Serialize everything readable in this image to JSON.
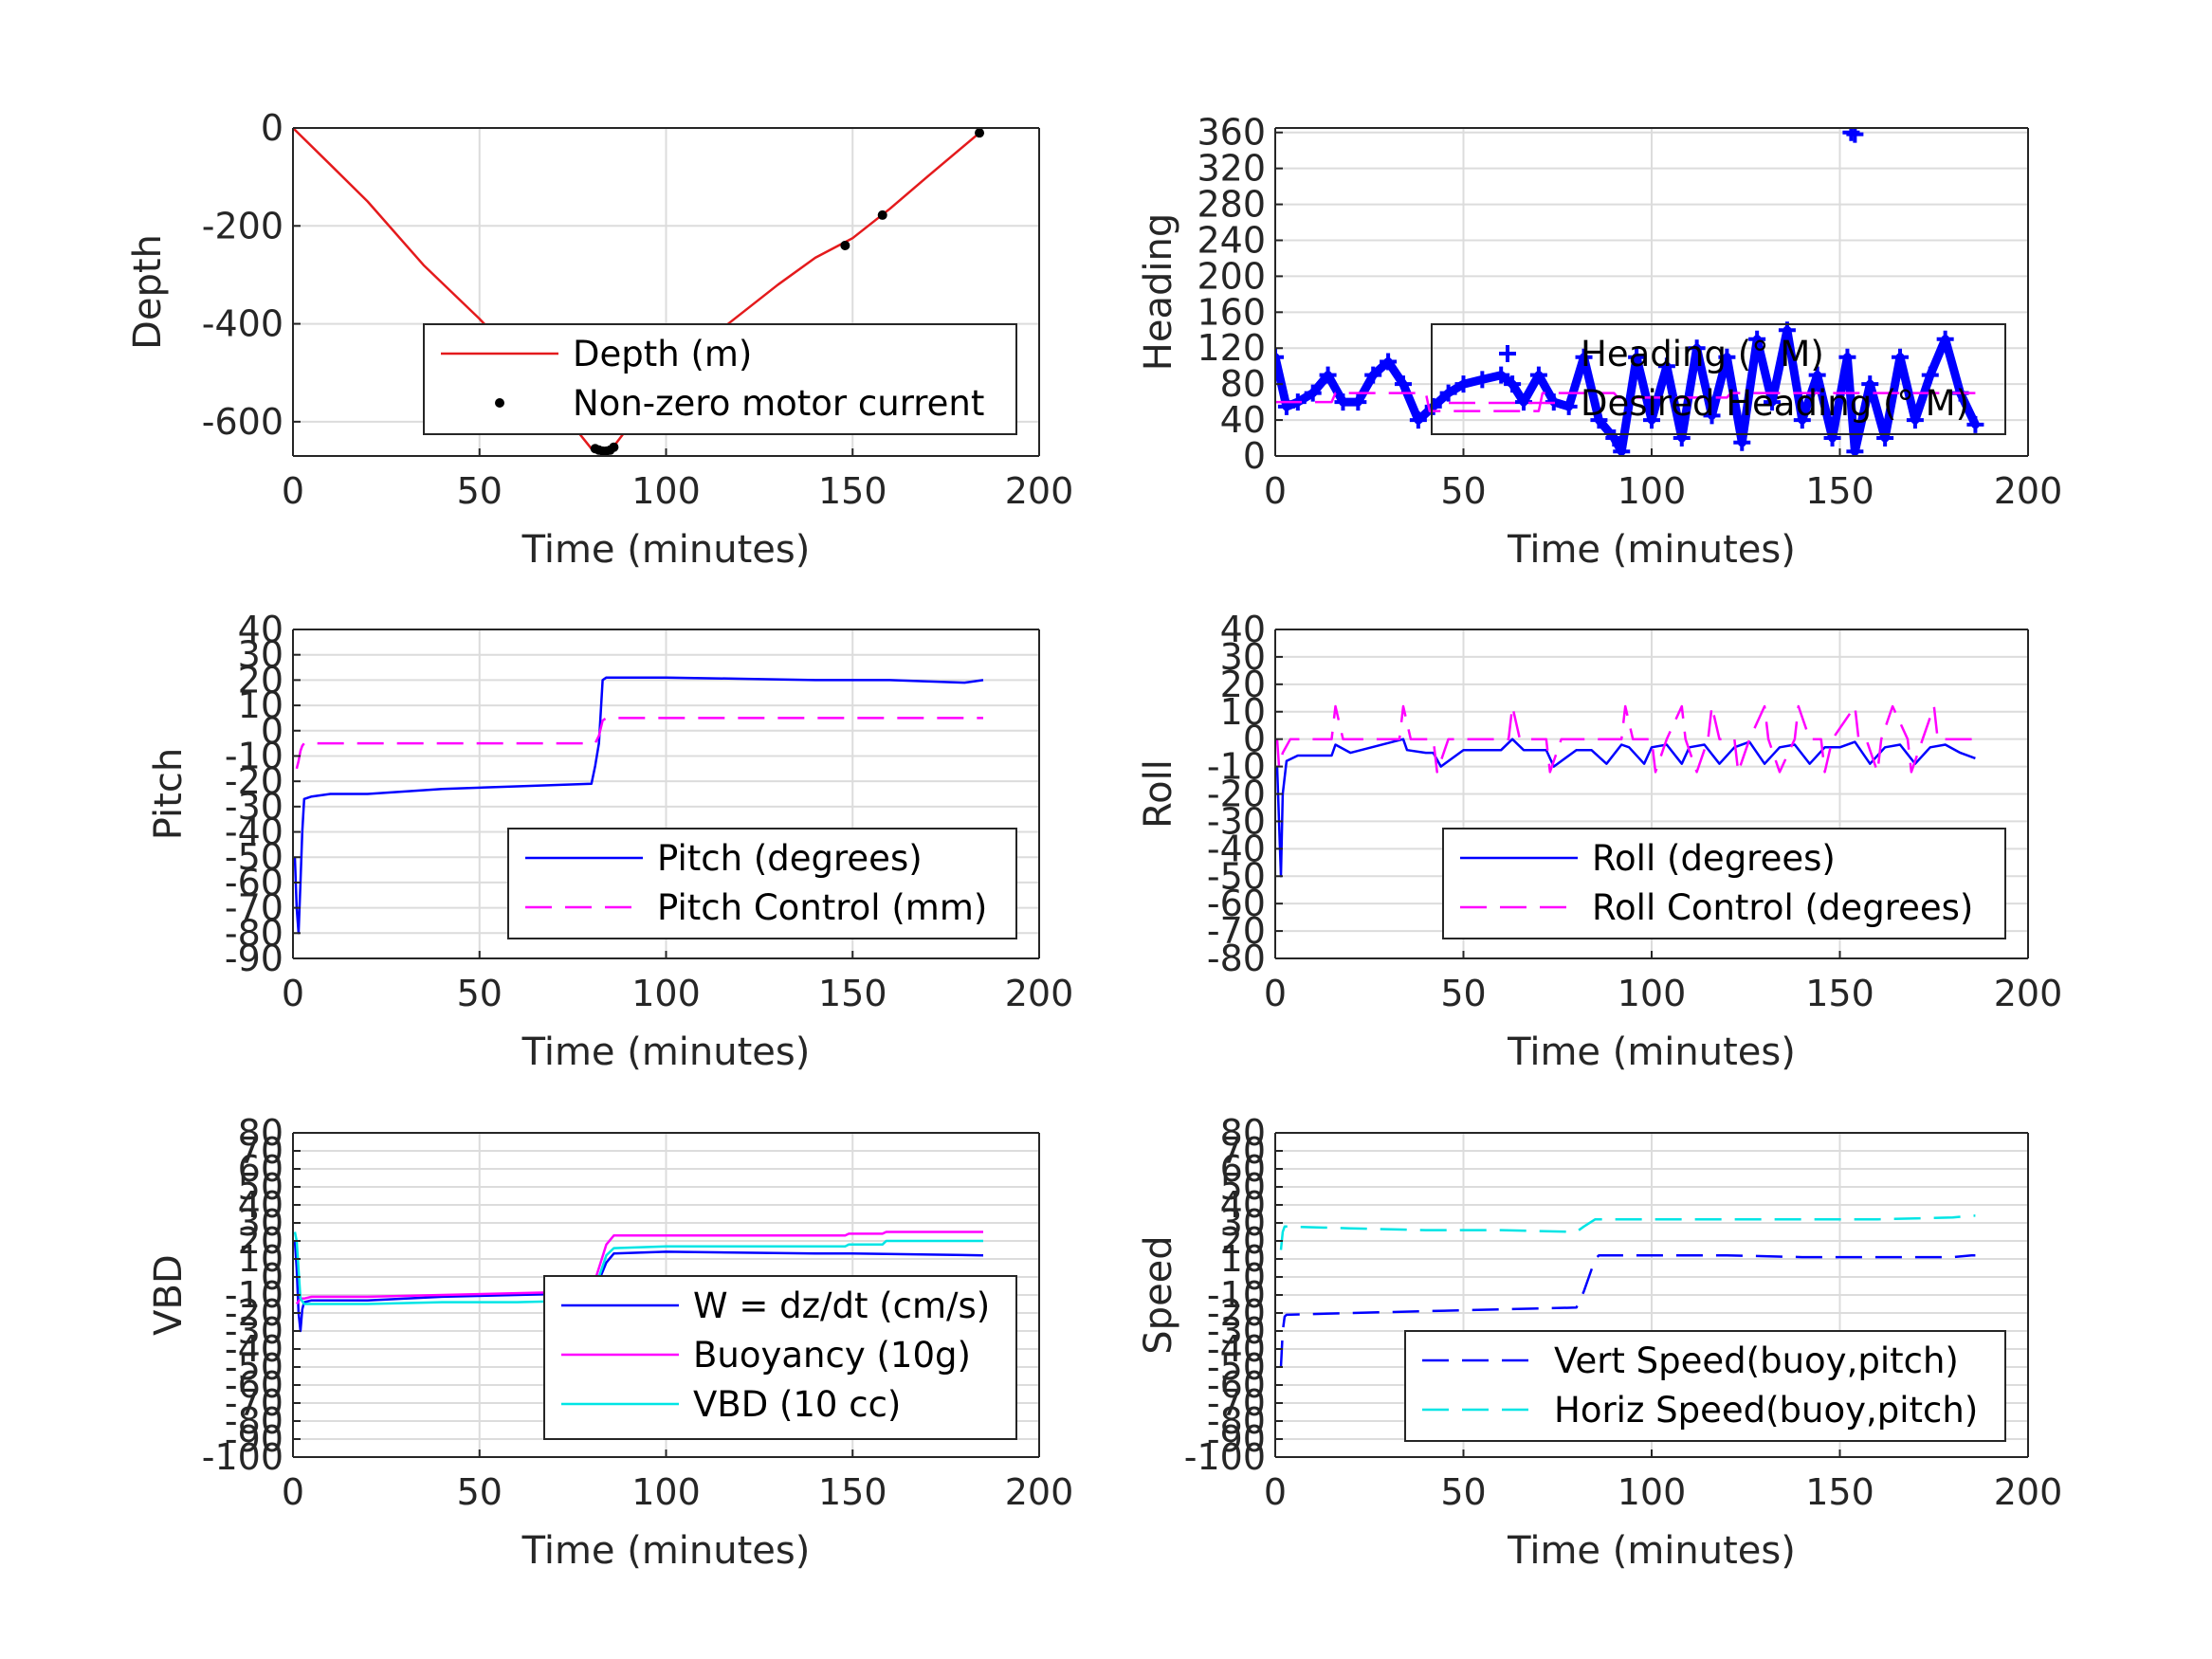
{
  "chart_data": [
    {
      "type": "line",
      "xlabel": "Time (minutes)",
      "ylabel": "Depth",
      "xlim": [
        0,
        200
      ],
      "ylim": [
        -670,
        0
      ],
      "xticks": [
        0,
        50,
        100,
        150,
        200
      ],
      "yticks": [
        0,
        -200,
        -400,
        -600
      ],
      "grid": true,
      "legend": "lower-right",
      "series": [
        {
          "name": "Depth (m)",
          "color": "#e41a1c",
          "style": "solid",
          "x": [
            0,
            10,
            20,
            35,
            50,
            60,
            70,
            80,
            83,
            86,
            95,
            105,
            115,
            130,
            140,
            150,
            160,
            170,
            184
          ],
          "y": [
            0,
            -75,
            -150,
            -280,
            -390,
            -470,
            -560,
            -655,
            -660,
            -650,
            -560,
            -480,
            -410,
            -320,
            -265,
            -225,
            -165,
            -100,
            -10
          ]
        },
        {
          "name": "Non-zero motor current",
          "color": "#000000",
          "style": "dots",
          "x": [
            81,
            82,
            83,
            84,
            85,
            86,
            148,
            158,
            184
          ],
          "y": [
            -655,
            -658,
            -660,
            -660,
            -658,
            -652,
            -240,
            -178,
            -10
          ]
        }
      ]
    },
    {
      "type": "line",
      "xlabel": "Time (minutes)",
      "ylabel": "Heading",
      "xlim": [
        0,
        200
      ],
      "ylim": [
        0,
        365
      ],
      "xticks": [
        0,
        50,
        100,
        150,
        200
      ],
      "yticks": [
        0,
        40,
        80,
        120,
        160,
        200,
        240,
        280,
        320,
        360
      ],
      "grid": true,
      "legend": "middle-right",
      "series": [
        {
          "name": "Heading (° M)",
          "color": "#0000ff",
          "style": "markers",
          "x": [
            0,
            3,
            6,
            10,
            14,
            18,
            22,
            26,
            30,
            34,
            38,
            42,
            46,
            50,
            55,
            60,
            63,
            66,
            70,
            74,
            78,
            82,
            86,
            90,
            92,
            96,
            100,
            104,
            108,
            112,
            116,
            120,
            124,
            128,
            132,
            136,
            140,
            144,
            148,
            152,
            154,
            158,
            162,
            166,
            170,
            174,
            178,
            182,
            186
          ],
          "y": [
            110,
            55,
            60,
            70,
            90,
            60,
            60,
            90,
            105,
            80,
            40,
            55,
            70,
            80,
            85,
            90,
            80,
            60,
            90,
            60,
            55,
            110,
            40,
            20,
            5,
            110,
            40,
            100,
            20,
            120,
            45,
            110,
            15,
            130,
            60,
            140,
            40,
            90,
            20,
            110,
            5,
            80,
            20,
            110,
            40,
            90,
            130,
            70,
            35
          ]
        },
        {
          "name": "Desired Heading (° M)",
          "color": "#ff00ff",
          "style": "dashed",
          "x": [
            0,
            15,
            16,
            40,
            41,
            70,
            71,
            90,
            91,
            120,
            121,
            150,
            151,
            186
          ],
          "y": [
            60,
            60,
            70,
            70,
            50,
            50,
            70,
            70,
            65,
            65,
            70,
            70,
            70,
            70
          ]
        },
        {
          "name": "",
          "color": "#0000ff",
          "style": "markers",
          "x": [
            153,
            154
          ],
          "y": [
            360,
            358
          ]
        }
      ]
    },
    {
      "type": "line",
      "xlabel": "Time (minutes)",
      "ylabel": "Pitch",
      "xlim": [
        0,
        200
      ],
      "ylim": [
        -90,
        40
      ],
      "xticks": [
        0,
        50,
        100,
        150,
        200
      ],
      "yticks": [
        -90,
        -80,
        -70,
        -60,
        -50,
        -40,
        -30,
        -20,
        -10,
        0,
        10,
        20,
        30,
        40
      ],
      "grid": true,
      "legend": "lower-right",
      "series": [
        {
          "name": "Pitch (degrees)",
          "color": "#0000ff",
          "style": "solid",
          "x": [
            0.5,
            1,
            1.5,
            2,
            2.5,
            3,
            5,
            10,
            20,
            40,
            60,
            80,
            81,
            82,
            83,
            84,
            100,
            120,
            140,
            160,
            180,
            185
          ],
          "y": [
            -50,
            -70,
            -80,
            -60,
            -40,
            -27,
            -26,
            -25,
            -25,
            -23,
            -22,
            -21,
            -14,
            -5,
            20,
            21,
            21,
            20.5,
            20,
            20,
            19,
            20
          ]
        },
        {
          "name": "Pitch Control (mm)",
          "color": "#ff00ff",
          "style": "dashed",
          "x": [
            1,
            1.5,
            2,
            2.5,
            3,
            20,
            40,
            60,
            81,
            82,
            83,
            84,
            100,
            140,
            185
          ],
          "y": [
            -15,
            -12,
            -8,
            -6,
            -5,
            -5,
            -5,
            -5,
            -5,
            -2,
            4,
            5,
            5,
            5,
            5
          ]
        }
      ]
    },
    {
      "type": "line",
      "xlabel": "Time (minutes)",
      "ylabel": "Roll",
      "xlim": [
        0,
        200
      ],
      "ylim": [
        -80,
        40
      ],
      "xticks": [
        0,
        50,
        100,
        150,
        200
      ],
      "yticks": [
        -80,
        -70,
        -60,
        -50,
        -40,
        -30,
        -20,
        -10,
        0,
        10,
        20,
        30,
        40
      ],
      "grid": true,
      "legend": "lower-right",
      "series": [
        {
          "name": "Roll (degrees)",
          "color": "#0000ff",
          "style": "solid",
          "x": [
            0.5,
            1,
            1.5,
            2,
            3,
            6,
            15,
            16,
            20,
            34,
            35,
            40,
            42,
            44,
            50,
            60,
            63,
            66,
            72,
            74,
            80,
            84,
            88,
            92,
            94,
            98,
            100,
            104,
            108,
            110,
            114,
            118,
            122,
            126,
            130,
            134,
            138,
            142,
            146,
            150,
            154,
            158,
            162,
            166,
            170,
            174,
            178,
            182,
            186
          ],
          "y": [
            -10,
            -30,
            -50,
            -20,
            -8,
            -6,
            -6,
            -2,
            -5,
            0,
            -4,
            -5,
            -5,
            -10,
            -4,
            -4,
            0,
            -4,
            -4,
            -10,
            -4,
            -4,
            -9,
            -2,
            -3,
            -9,
            -3,
            -2,
            -9,
            -3,
            -2,
            -9,
            -3,
            -1,
            -9,
            -3,
            -2,
            -9,
            -3,
            -3,
            -1,
            -9,
            -3,
            -2,
            -9,
            -3,
            -2,
            -5,
            -7
          ]
        },
        {
          "name": "Roll Control (degrees)",
          "color": "#ff00ff",
          "style": "dashed",
          "x": [
            0.5,
            1,
            2,
            4,
            15,
            16,
            18,
            33,
            34,
            36,
            42,
            43,
            46,
            62,
            63,
            65,
            72,
            73,
            76,
            92,
            93,
            95,
            100,
            101,
            104,
            108,
            109,
            112,
            115,
            116,
            118,
            122,
            123,
            126,
            130,
            131,
            134,
            138,
            139,
            142,
            145,
            146,
            148,
            154,
            155,
            157,
            160,
            161,
            164,
            168,
            169,
            172,
            175,
            176,
            178,
            182,
            186
          ],
          "y": [
            0,
            -10,
            -5,
            0,
            0,
            12,
            0,
            0,
            12,
            0,
            0,
            -12,
            0,
            0,
            12,
            0,
            0,
            -12,
            0,
            0,
            12,
            0,
            0,
            -12,
            0,
            12,
            0,
            -12,
            0,
            12,
            0,
            0,
            -12,
            0,
            12,
            0,
            -12,
            0,
            12,
            0,
            0,
            -12,
            0,
            12,
            0,
            0,
            -12,
            0,
            12,
            0,
            -12,
            0,
            12,
            0,
            0,
            0,
            0
          ]
        }
      ]
    },
    {
      "type": "line",
      "xlabel": "Time (minutes)",
      "ylabel": "VBD",
      "xlim": [
        0,
        200
      ],
      "ylim": [
        -100,
        80
      ],
      "xticks": [
        0,
        50,
        100,
        150,
        200
      ],
      "yticks": [
        -100,
        -90,
        -80,
        -70,
        -60,
        -50,
        -40,
        -30,
        -20,
        -10,
        0,
        10,
        20,
        30,
        40,
        50,
        60,
        70,
        80
      ],
      "ytick_labels": [
        "-100",
        "-90",
        "-80",
        "-70",
        "-60",
        "-50",
        "-40",
        "-30",
        "-20",
        "-10",
        "0",
        "10",
        "20",
        "30",
        "40",
        "50",
        "60",
        "70",
        "80"
      ],
      "grid": true,
      "legend": "lower-right",
      "series": [
        {
          "name": "W = dz/dt (cm/s)",
          "color": "#0000ff",
          "style": "solid",
          "x": [
            0.5,
            1,
            1.5,
            2,
            2.5,
            3,
            5,
            20,
            40,
            60,
            80,
            82,
            84,
            86,
            100,
            140,
            150,
            185
          ],
          "y": [
            20,
            5,
            -20,
            -30,
            -18,
            -14,
            -13,
            -13,
            -11,
            -10,
            -9,
            -2,
            8,
            13,
            14,
            13,
            13,
            12
          ]
        },
        {
          "name": "Buoyancy (10g)",
          "color": "#ff00ff",
          "style": "solid",
          "x": [
            1,
            2,
            3,
            5,
            20,
            40,
            60,
            80,
            82,
            84,
            86,
            100,
            148,
            149,
            158,
            159,
            185
          ],
          "y": [
            -15,
            -12,
            -12,
            -11,
            -11,
            -10,
            -9,
            -8,
            5,
            18,
            23,
            23,
            23,
            24,
            24,
            25,
            25
          ]
        },
        {
          "name": "VBD (10 cc)",
          "color": "#00e5e5",
          "style": "solid",
          "x": [
            0.5,
            1,
            2,
            3,
            5,
            20,
            40,
            60,
            80,
            82,
            84,
            86,
            100,
            148,
            149,
            158,
            159,
            185
          ],
          "y": [
            25,
            20,
            -12,
            -15,
            -15,
            -15,
            -14,
            -14,
            -13,
            0,
            12,
            16,
            17,
            17,
            18,
            18,
            20,
            20
          ]
        }
      ]
    },
    {
      "type": "line",
      "xlabel": "Time (minutes)",
      "ylabel": "Speed",
      "xlim": [
        0,
        200
      ],
      "ylim": [
        -100,
        80
      ],
      "xticks": [
        0,
        50,
        100,
        150,
        200
      ],
      "yticks": [
        -100,
        -90,
        -80,
        -70,
        -60,
        -50,
        -40,
        -30,
        -20,
        -10,
        0,
        10,
        20,
        30,
        40,
        50,
        60,
        70,
        80
      ],
      "ytick_labels": [
        "-100",
        "-90",
        "-80",
        "-70",
        "-60",
        "-50",
        "-40",
        "-30",
        "-20",
        "-10",
        "0",
        "10",
        "20",
        "30",
        "40",
        "50",
        "60",
        "70",
        "80"
      ],
      "grid": true,
      "legend": "lower-right",
      "series": [
        {
          "name": "Vert Speed(buoy,pitch)",
          "color": "#0000ff",
          "style": "dashed",
          "x": [
            1.5,
            2,
            2.5,
            3,
            20,
            40,
            60,
            80,
            82,
            85,
            86,
            100,
            120,
            140,
            160,
            180,
            185,
            186
          ],
          "y": [
            -50,
            -30,
            -22,
            -21,
            -20,
            -19,
            -18,
            -17,
            -8,
            10,
            12,
            12,
            12,
            11,
            11,
            11,
            12,
            12
          ]
        },
        {
          "name": "Horiz Speed(buoy,pitch)",
          "color": "#00e5e5",
          "style": "dashed",
          "x": [
            1.5,
            2,
            2.5,
            3,
            20,
            40,
            60,
            80,
            82,
            85,
            86,
            100,
            120,
            140,
            160,
            180,
            185,
            186
          ],
          "y": [
            15,
            25,
            28,
            28,
            27,
            26,
            26,
            25,
            28,
            32,
            32,
            32,
            32,
            32,
            32,
            33,
            34,
            34
          ]
        }
      ]
    }
  ]
}
